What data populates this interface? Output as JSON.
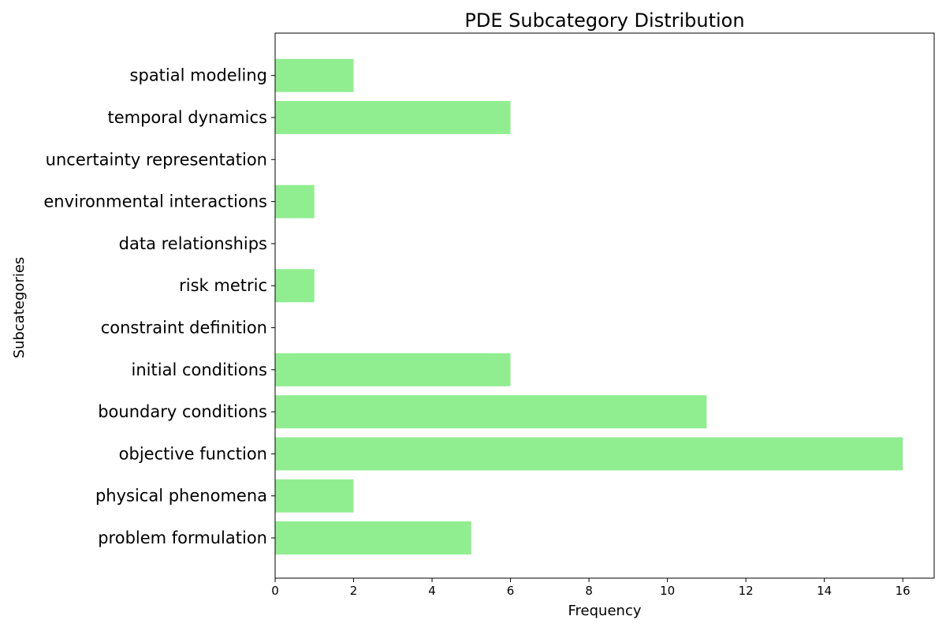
{
  "chart_data": {
    "type": "bar",
    "orientation": "horizontal",
    "title": "PDE Subcategory Distribution",
    "xlabel": "Frequency",
    "ylabel": "Subcategories",
    "categories": [
      "problem formulation",
      "physical phenomena",
      "objective function",
      "boundary conditions",
      "initial conditions",
      "constraint definition",
      "risk metric",
      "data relationships",
      "environmental interactions",
      "uncertainty representation",
      "temporal dynamics",
      "spatial modeling"
    ],
    "values": [
      5,
      2,
      16,
      11,
      6,
      0,
      1,
      0,
      1,
      0,
      6,
      2
    ],
    "xlim": [
      0,
      16.8
    ],
    "xticks": [
      0,
      2,
      4,
      6,
      8,
      10,
      12,
      14,
      16
    ],
    "grid": false,
    "bar_color": "#90EE90"
  }
}
